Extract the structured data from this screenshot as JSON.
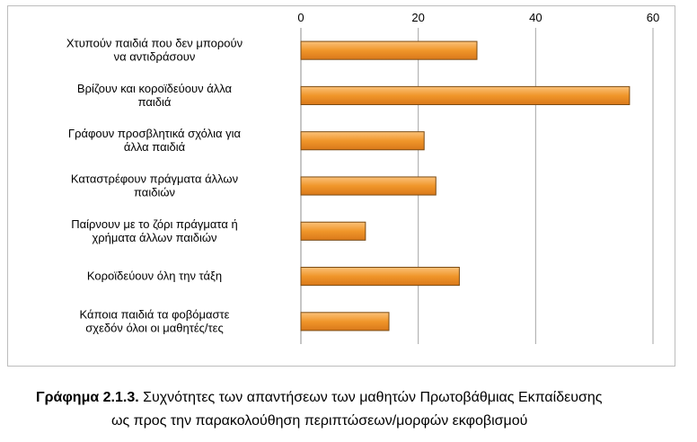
{
  "chart_data": {
    "type": "bar",
    "orientation": "horizontal",
    "x_axis_position": "top",
    "grid": true,
    "xlim": [
      0,
      60
    ],
    "ticks": [
      "0",
      "20",
      "40",
      "60"
    ],
    "categories": [
      [
        "Χτυπούν παιδιά που δεν μπορούν",
        "να αντιδράσουν"
      ],
      [
        "Βρίζουν και κοροϊδεύουν άλλα",
        "παιδιά"
      ],
      [
        "Γράφουν προσβλητικά σχόλια για",
        "άλλα παιδιά"
      ],
      [
        "Καταστρέφουν πράγματα   άλλων",
        "παιδιών"
      ],
      [
        "Παίρνουν με το ζόρι πράγματα ή",
        "χρήματα άλλων παιδιών"
      ],
      [
        "Κοροϊδεύουν όλη την τάξη"
      ],
      [
        "Κάποια παιδιά τα φοβόμαστε",
        "σχεδόν όλοι οι μαθητές/τες"
      ]
    ],
    "values": [
      30,
      56,
      21,
      23,
      11,
      27,
      15
    ],
    "bar_color": "#f0962a",
    "bar_edge_color": "#7a4a12"
  },
  "caption": {
    "label": "Γράφημα 2.1.3.",
    "line1": " Συχνότητες των απαντήσεων των μαθητών Πρωτοβάθμιας Εκπαίδευσης",
    "line2": "ως προς την παρακολούθηση περιπτώσεων/μορφών εκφοβισμού"
  }
}
